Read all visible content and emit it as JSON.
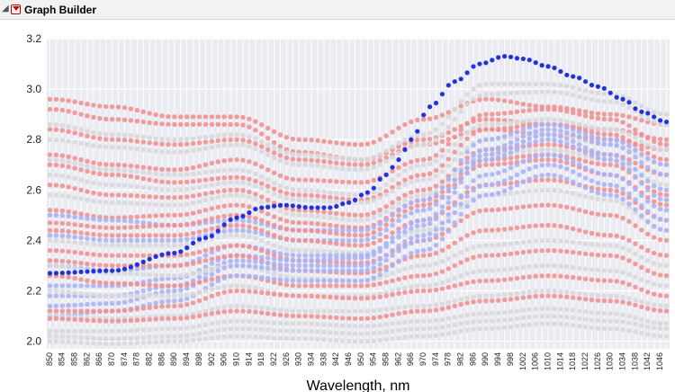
{
  "window": {
    "title": "Graph Builder",
    "outline_icon": "disclosure-triangle-icon",
    "menu_icon": "red-triangle-menu-icon"
  },
  "chart_data": {
    "type": "scatter",
    "title": "",
    "xlabel": "Wavelength, nm",
    "ylabel": "",
    "xlim": [
      849,
      1049
    ],
    "ylim": [
      1.97,
      3.2
    ],
    "yticks": [
      2.0,
      2.2,
      2.4,
      2.6,
      2.8,
      3.0,
      3.2
    ],
    "xticks": [
      850,
      854,
      858,
      862,
      866,
      870,
      874,
      878,
      882,
      886,
      890,
      894,
      898,
      902,
      906,
      910,
      914,
      918,
      922,
      926,
      930,
      934,
      938,
      942,
      946,
      950,
      954,
      958,
      962,
      966,
      970,
      974,
      978,
      982,
      986,
      990,
      994,
      998,
      1002,
      1006,
      1010,
      1014,
      1018,
      1022,
      1026,
      1030,
      1034,
      1038,
      1042,
      1046
    ],
    "x_step": 2,
    "grid": true,
    "legend": "none",
    "colors": {
      "background": "#ebebf2",
      "gridline": "#ffffff",
      "highlight": "#2233dd",
      "red": "#f19191",
      "blue": "#aab2f5",
      "gray": "#d8d8dc"
    },
    "highlighted_series": {
      "name": "",
      "points": [
        [
          850,
          2.27
        ],
        [
          870,
          2.28
        ],
        [
          890,
          2.35
        ],
        [
          900,
          2.41
        ],
        [
          910,
          2.49
        ],
        [
          918,
          2.53
        ],
        [
          925,
          2.54
        ],
        [
          934,
          2.53
        ],
        [
          940,
          2.53
        ],
        [
          946,
          2.55
        ],
        [
          952,
          2.59
        ],
        [
          958,
          2.66
        ],
        [
          962,
          2.72
        ],
        [
          966,
          2.8
        ],
        [
          972,
          2.93
        ],
        [
          980,
          3.03
        ],
        [
          988,
          3.1
        ],
        [
          996,
          3.13
        ],
        [
          1002,
          3.12
        ],
        [
          1010,
          3.09
        ],
        [
          1018,
          3.05
        ],
        [
          1026,
          3.01
        ],
        [
          1034,
          2.96
        ],
        [
          1040,
          2.91
        ],
        [
          1048,
          2.87
        ]
      ]
    },
    "background_series": [
      {
        "color": "red",
        "values": [
          2.96,
          2.93,
          2.89,
          2.89,
          2.8,
          2.78,
          2.88,
          2.96,
          2.93,
          2.9,
          2.86
        ]
      },
      {
        "color": "red",
        "values": [
          2.92,
          2.88,
          2.86,
          2.86,
          2.75,
          2.72,
          2.8,
          2.88,
          2.86,
          2.84,
          2.8
        ]
      },
      {
        "color": "red",
        "values": [
          2.84,
          2.8,
          2.78,
          2.8,
          2.72,
          2.7,
          2.78,
          2.84,
          2.82,
          2.8,
          2.76
        ]
      },
      {
        "color": "gray",
        "values": [
          2.86,
          2.82,
          2.8,
          2.82,
          2.74,
          2.72,
          2.82,
          3.02,
          3.02,
          2.98,
          2.9
        ]
      },
      {
        "color": "gray",
        "values": [
          2.8,
          2.77,
          2.75,
          2.78,
          2.7,
          2.68,
          2.78,
          2.98,
          2.99,
          2.95,
          2.86
        ]
      },
      {
        "color": "red",
        "values": [
          2.74,
          2.7,
          2.68,
          2.72,
          2.64,
          2.63,
          2.72,
          2.9,
          2.92,
          2.88,
          2.78
        ]
      },
      {
        "color": "gray",
        "values": [
          2.72,
          2.68,
          2.66,
          2.68,
          2.6,
          2.58,
          2.7,
          2.86,
          2.88,
          2.84,
          2.76
        ]
      },
      {
        "color": "red",
        "values": [
          2.7,
          2.66,
          2.63,
          2.65,
          2.58,
          2.56,
          2.66,
          2.84,
          2.86,
          2.82,
          2.72
        ]
      },
      {
        "color": "gray",
        "values": [
          2.66,
          2.62,
          2.6,
          2.63,
          2.56,
          2.55,
          2.64,
          2.8,
          2.82,
          2.78,
          2.7
        ]
      },
      {
        "color": "red",
        "values": [
          2.62,
          2.58,
          2.57,
          2.6,
          2.52,
          2.5,
          2.6,
          2.76,
          2.78,
          2.74,
          2.66
        ]
      },
      {
        "color": "gray",
        "values": [
          2.58,
          2.55,
          2.54,
          2.58,
          2.5,
          2.48,
          2.58,
          2.74,
          2.76,
          2.72,
          2.62
        ]
      },
      {
        "color": "red",
        "values": [
          2.52,
          2.49,
          2.5,
          2.54,
          2.47,
          2.45,
          2.56,
          2.72,
          2.74,
          2.7,
          2.58
        ]
      },
      {
        "color": "blue",
        "values": [
          2.5,
          2.48,
          2.46,
          2.48,
          2.44,
          2.44,
          2.56,
          2.8,
          2.86,
          2.8,
          2.7
        ]
      },
      {
        "color": "red",
        "values": [
          2.47,
          2.45,
          2.46,
          2.5,
          2.44,
          2.42,
          2.54,
          2.7,
          2.72,
          2.66,
          2.54
        ]
      },
      {
        "color": "blue",
        "values": [
          2.42,
          2.4,
          2.4,
          2.44,
          2.4,
          2.4,
          2.52,
          2.76,
          2.84,
          2.78,
          2.66
        ]
      },
      {
        "color": "red",
        "values": [
          2.44,
          2.42,
          2.42,
          2.46,
          2.4,
          2.38,
          2.48,
          2.62,
          2.64,
          2.6,
          2.48
        ]
      },
      {
        "color": "gray",
        "values": [
          2.4,
          2.38,
          2.38,
          2.42,
          2.36,
          2.35,
          2.44,
          2.58,
          2.6,
          2.56,
          2.44
        ]
      },
      {
        "color": "blue",
        "values": [
          2.3,
          2.28,
          2.3,
          2.38,
          2.34,
          2.34,
          2.48,
          2.74,
          2.82,
          2.74,
          2.6
        ]
      },
      {
        "color": "red",
        "values": [
          2.36,
          2.34,
          2.34,
          2.38,
          2.32,
          2.31,
          2.4,
          2.52,
          2.54,
          2.5,
          2.4
        ]
      },
      {
        "color": "blue",
        "values": [
          2.22,
          2.22,
          2.25,
          2.34,
          2.32,
          2.33,
          2.46,
          2.72,
          2.8,
          2.72,
          2.56
        ]
      },
      {
        "color": "red",
        "values": [
          2.32,
          2.3,
          2.3,
          2.34,
          2.28,
          2.27,
          2.34,
          2.44,
          2.46,
          2.42,
          2.34
        ]
      },
      {
        "color": "blue",
        "values": [
          2.18,
          2.18,
          2.22,
          2.32,
          2.3,
          2.3,
          2.42,
          2.66,
          2.74,
          2.66,
          2.52
        ]
      },
      {
        "color": "gray",
        "values": [
          2.3,
          2.27,
          2.26,
          2.3,
          2.25,
          2.24,
          2.3,
          2.38,
          2.4,
          2.38,
          2.3
        ]
      },
      {
        "color": "blue",
        "values": [
          2.14,
          2.15,
          2.2,
          2.3,
          2.28,
          2.28,
          2.4,
          2.62,
          2.7,
          2.62,
          2.48
        ]
      },
      {
        "color": "red",
        "values": [
          2.26,
          2.23,
          2.22,
          2.26,
          2.22,
          2.22,
          2.26,
          2.34,
          2.36,
          2.34,
          2.26
        ]
      },
      {
        "color": "blue",
        "values": [
          2.1,
          2.12,
          2.16,
          2.26,
          2.24,
          2.24,
          2.36,
          2.58,
          2.66,
          2.58,
          2.44
        ]
      },
      {
        "color": "gray",
        "values": [
          2.2,
          2.18,
          2.18,
          2.22,
          2.18,
          2.18,
          2.22,
          2.28,
          2.3,
          2.28,
          2.22
        ]
      },
      {
        "color": "red",
        "values": [
          2.12,
          2.12,
          2.14,
          2.2,
          2.18,
          2.17,
          2.2,
          2.24,
          2.26,
          2.24,
          2.18
        ]
      },
      {
        "color": "gray",
        "values": [
          2.1,
          2.09,
          2.1,
          2.14,
          2.12,
          2.12,
          2.14,
          2.18,
          2.2,
          2.18,
          2.14
        ]
      },
      {
        "color": "red",
        "values": [
          2.09,
          2.08,
          2.09,
          2.12,
          2.1,
          2.09,
          2.12,
          2.16,
          2.18,
          2.16,
          2.12
        ]
      },
      {
        "color": "gray",
        "values": [
          2.04,
          2.04,
          2.05,
          2.08,
          2.07,
          2.06,
          2.08,
          2.11,
          2.13,
          2.11,
          2.07
        ]
      },
      {
        "color": "gray",
        "values": [
          2.02,
          2.01,
          2.02,
          2.05,
          2.04,
          2.03,
          2.05,
          2.08,
          2.1,
          2.08,
          2.05
        ]
      },
      {
        "color": "gray",
        "values": [
          2.0,
          1.99,
          2.0,
          2.02,
          2.01,
          2.0,
          2.02,
          2.05,
          2.07,
          2.05,
          2.02
        ]
      }
    ],
    "background_knots_x": [
      850,
      870,
      890,
      910,
      930,
      950,
      970,
      990,
      1010,
      1030,
      1048
    ]
  }
}
